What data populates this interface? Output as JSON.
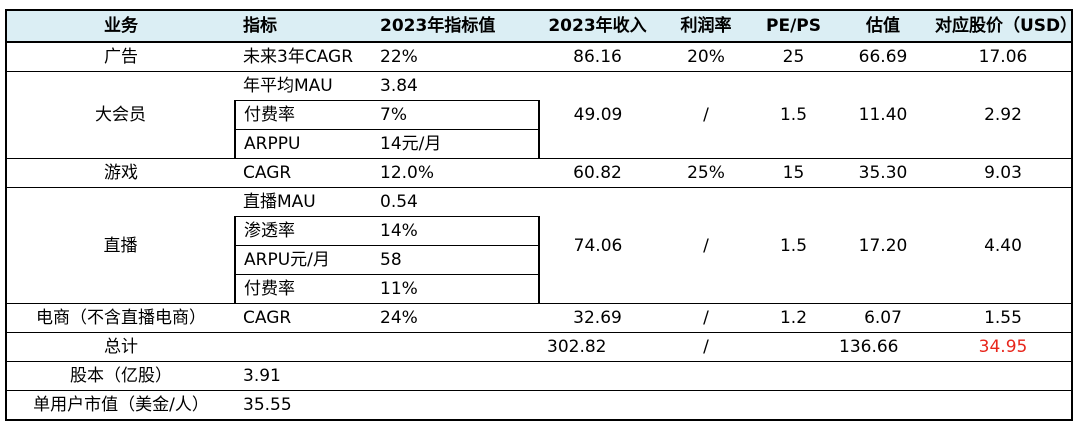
{
  "headers": [
    "业务",
    "指标",
    "2023年指标值",
    "2023年收入",
    "利润率",
    "PE/PS",
    "估值",
    "对应股价（USD）"
  ],
  "rows": {
    "ad": {
      "business": "广告",
      "metric": "未来3年CAGR",
      "value": "22%",
      "revenue": "86.16",
      "margin": "20%",
      "pe": "25",
      "valuation": "66.69",
      "price": "17.06"
    },
    "vip": {
      "business": "大会员",
      "metrics": [
        {
          "metric": "年平均MAU",
          "value": "3.84"
        },
        {
          "metric": "付费率",
          "value": "7%"
        },
        {
          "metric": "ARPPU",
          "value": "14元/月"
        }
      ],
      "revenue": "49.09",
      "margin": "/",
      "pe": "1.5",
      "valuation": "11.40",
      "price": "2.92"
    },
    "game": {
      "business": "游戏",
      "metric": "CAGR",
      "value": "12.0%",
      "revenue": "60.82",
      "margin": "25%",
      "pe": "15",
      "valuation": "35.30",
      "price": "9.03"
    },
    "live": {
      "business": "直播",
      "metrics": [
        {
          "metric": "直播MAU",
          "value": "0.54"
        },
        {
          "metric": "渗透率",
          "value": "14%"
        },
        {
          "metric": "ARPU元/月",
          "value": "58"
        },
        {
          "metric": "付费率",
          "value": "11%"
        }
      ],
      "revenue": "74.06",
      "margin": "/",
      "pe": "1.5",
      "valuation": "17.20",
      "price": "4.40"
    },
    "ecom": {
      "business": "电商（不含直播电商）",
      "metric": "CAGR",
      "value": "24%",
      "revenue": "32.69",
      "margin": "/",
      "pe": "1.2",
      "valuation": "6.07",
      "price": "1.55"
    },
    "total": {
      "business": "总计",
      "revenue": "302.82",
      "margin": "/",
      "valuation": "136.66",
      "price": "34.95"
    },
    "shares": {
      "business": "股本（亿股）",
      "value": "3.91"
    },
    "per_user": {
      "business": "单用户市值（美金/人）",
      "value": "35.55"
    }
  },
  "colors": {
    "header_bg": "#dbeef4",
    "highlight": "#e8261c"
  }
}
